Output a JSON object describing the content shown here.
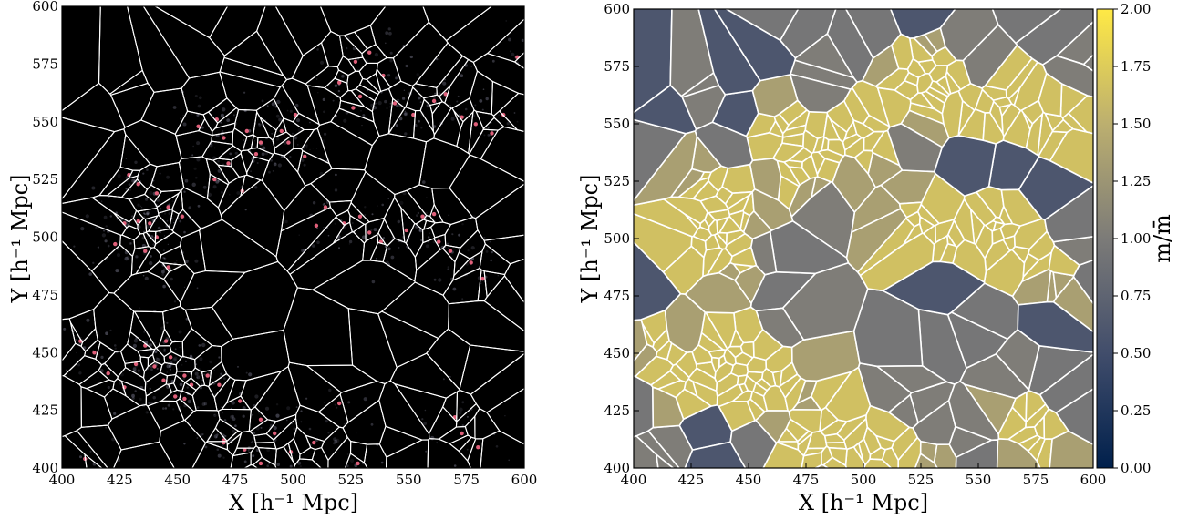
{
  "chart_data": [
    {
      "type": "scatter",
      "title": "",
      "xlabel": "X [h⁻¹ Mpc]",
      "ylabel": "Y [h⁻¹ Mpc]",
      "xlim": [
        400,
        600
      ],
      "ylim": [
        400,
        600
      ],
      "xticks": [
        "400",
        "425",
        "450",
        "475",
        "500",
        "525",
        "550",
        "575",
        "600"
      ],
      "yticks": [
        "400",
        "425",
        "450",
        "475",
        "500",
        "525",
        "550",
        "575",
        "600"
      ],
      "background": "#000000",
      "edge_color": "#ffffff",
      "point_color": "#e0607a",
      "points": {
        "x": [
          429,
          433,
          441,
          446,
          452,
          438,
          433,
          427,
          441,
          423,
          436,
          446,
          459,
          467,
          470,
          480,
          484,
          472,
          466,
          478,
          486,
          495,
          501,
          498,
          505,
          520,
          527,
          533,
          539,
          529,
          526,
          544,
          552,
          561,
          566,
          573,
          579,
          586,
          591,
          597,
          561,
          556,
          549,
          563,
          568,
          577,
          582,
          529,
          533,
          538,
          522,
          514,
          510,
          463,
          456,
          449,
          444,
          440,
          436,
          445,
          447,
          453,
          468,
          477,
          486,
          492,
          499,
          509,
          486,
          479,
          470,
          408,
          414,
          420,
          427,
          432,
          410,
          453,
          470,
          520,
          528,
          573,
          570,
          580
        ],
        "y": [
          527,
          523,
          519,
          513,
          509,
          506,
          507,
          506,
          500,
          497,
          494,
          487,
          548,
          551,
          543,
          546,
          536,
          532,
          525,
          520,
          541,
          546,
          553,
          541,
          535,
          567,
          576,
          580,
          570,
          561,
          556,
          558,
          553,
          559,
          562,
          552,
          549,
          545,
          553,
          578,
          510,
          509,
          503,
          498,
          494,
          489,
          482,
          509,
          502,
          498,
          506,
          513,
          505,
          440,
          436,
          431,
          438,
          444,
          453,
          455,
          448,
          440,
          436,
          429,
          421,
          415,
          407,
          411,
          402,
          408,
          412,
          455,
          450,
          441,
          435,
          445,
          404,
          430,
          411,
          428,
          402,
          415,
          422,
          409
        ]
      }
    },
    {
      "type": "heatmap",
      "title": "",
      "xlabel": "X [h⁻¹ Mpc]",
      "ylabel": "Y [h⁻¹ Mpc]",
      "xlim": [
        400,
        600
      ],
      "ylim": [
        400,
        600
      ],
      "xticks": [
        "400",
        "425",
        "450",
        "475",
        "500",
        "525",
        "550",
        "575",
        "600"
      ],
      "yticks": [
        "400",
        "425",
        "450",
        "475",
        "500",
        "525",
        "550",
        "575",
        "600"
      ],
      "colorbar": {
        "label": "m/m̄",
        "range": [
          0,
          2
        ],
        "ticks": [
          "0.00",
          "0.25",
          "0.50",
          "0.75",
          "1.00",
          "1.25",
          "1.50",
          "1.75",
          "2.00"
        ],
        "colors": [
          "#00204c",
          "#414d6b",
          "#7c7b78",
          "#bcaf6f",
          "#ffe945"
        ]
      },
      "edge_color": "#ffffff"
    }
  ]
}
